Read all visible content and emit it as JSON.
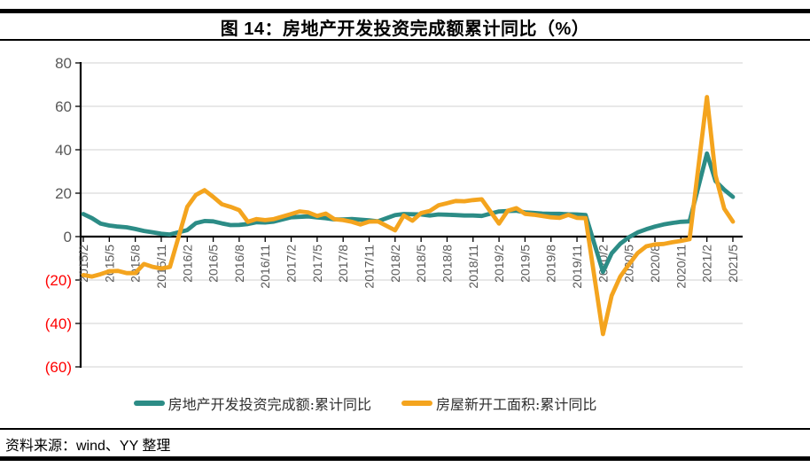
{
  "header": {
    "title": "图 14：房地产开发投资完成额累计同比（%）"
  },
  "footer": {
    "source": "资料来源：wind、YY 整理"
  },
  "colors": {
    "investment": "#2C8C86",
    "new_starts": "#F4A41E",
    "grid": "#D9D9D9",
    "axis": "#000000",
    "tick_label": "#595959",
    "negative_tick_label": "#FF0000"
  },
  "legend": {
    "position": "bottom",
    "items": [
      {
        "label": "房地产开发投资完成额:累计同比",
        "color": "#2C8C86"
      },
      {
        "label": "房屋新开工面积:累计同比",
        "color": "#F4A41E"
      }
    ]
  },
  "chart_data": {
    "type": "line",
    "title": "图 14：房地产开发投资完成额累计同比（%）",
    "xlabel": "",
    "ylabel": "",
    "ylim": [
      -60,
      80
    ],
    "grid": true,
    "y_ticks": [
      {
        "value": 80,
        "label": "80"
      },
      {
        "value": 60,
        "label": "60"
      },
      {
        "value": 40,
        "label": "40"
      },
      {
        "value": 20,
        "label": "20"
      },
      {
        "value": 0,
        "label": "0"
      },
      {
        "value": -20,
        "label": "(20)"
      },
      {
        "value": -40,
        "label": "(40)"
      },
      {
        "value": -60,
        "label": "(60)"
      }
    ],
    "x_ticks": [
      "2015/2",
      "2015/5",
      "2015/8",
      "2015/11",
      "2016/2",
      "2016/5",
      "2016/8",
      "2016/11",
      "2017/2",
      "2017/5",
      "2017/8",
      "2017/11",
      "2018/2",
      "2018/5",
      "2018/8",
      "2018/11",
      "2019/2",
      "2019/5",
      "2019/8",
      "2019/11",
      "2020/2",
      "2020/5",
      "2020/8",
      "2020/11",
      "2021/2",
      "2021/5"
    ],
    "series": [
      {
        "name": "房地产开发投资完成额:累计同比",
        "color": "#2C8C86",
        "points": [
          [
            "2015/2",
            10.4
          ],
          [
            "2015/3",
            8.5
          ],
          [
            "2015/4",
            6.0
          ],
          [
            "2015/5",
            5.1
          ],
          [
            "2015/6",
            4.6
          ],
          [
            "2015/7",
            4.3
          ],
          [
            "2015/8",
            3.5
          ],
          [
            "2015/9",
            2.6
          ],
          [
            "2015/10",
            2.0
          ],
          [
            "2015/11",
            1.3
          ],
          [
            "2015/12",
            1.0
          ],
          [
            "2016/2",
            3.0
          ],
          [
            "2016/3",
            6.2
          ],
          [
            "2016/4",
            7.2
          ],
          [
            "2016/5",
            7.0
          ],
          [
            "2016/6",
            6.1
          ],
          [
            "2016/7",
            5.3
          ],
          [
            "2016/8",
            5.4
          ],
          [
            "2016/9",
            5.8
          ],
          [
            "2016/10",
            6.6
          ],
          [
            "2016/11",
            6.5
          ],
          [
            "2016/12",
            6.9
          ],
          [
            "2017/2",
            8.9
          ],
          [
            "2017/3",
            9.1
          ],
          [
            "2017/4",
            9.3
          ],
          [
            "2017/5",
            8.8
          ],
          [
            "2017/6",
            8.5
          ],
          [
            "2017/7",
            7.9
          ],
          [
            "2017/8",
            7.9
          ],
          [
            "2017/9",
            8.1
          ],
          [
            "2017/10",
            7.8
          ],
          [
            "2017/11",
            7.5
          ],
          [
            "2017/12",
            7.0
          ],
          [
            "2018/2",
            9.9
          ],
          [
            "2018/3",
            10.4
          ],
          [
            "2018/4",
            10.3
          ],
          [
            "2018/5",
            10.2
          ],
          [
            "2018/6",
            9.7
          ],
          [
            "2018/7",
            10.2
          ],
          [
            "2018/8",
            10.1
          ],
          [
            "2018/9",
            9.9
          ],
          [
            "2018/10",
            9.7
          ],
          [
            "2018/11",
            9.7
          ],
          [
            "2018/12",
            9.5
          ],
          [
            "2019/2",
            11.6
          ],
          [
            "2019/3",
            11.8
          ],
          [
            "2019/4",
            11.9
          ],
          [
            "2019/5",
            11.2
          ],
          [
            "2019/6",
            10.9
          ],
          [
            "2019/7",
            10.6
          ],
          [
            "2019/8",
            10.5
          ],
          [
            "2019/9",
            10.5
          ],
          [
            "2019/10",
            10.3
          ],
          [
            "2019/11",
            10.2
          ],
          [
            "2019/12",
            9.9
          ],
          [
            "2020/2",
            -16.3
          ],
          [
            "2020/3",
            -7.7
          ],
          [
            "2020/4",
            -3.3
          ],
          [
            "2020/5",
            -0.3
          ],
          [
            "2020/6",
            1.9
          ],
          [
            "2020/7",
            3.4
          ],
          [
            "2020/8",
            4.6
          ],
          [
            "2020/9",
            5.6
          ],
          [
            "2020/10",
            6.3
          ],
          [
            "2020/11",
            6.8
          ],
          [
            "2020/12",
            7.0
          ],
          [
            "2021/2",
            38.3
          ],
          [
            "2021/3",
            25.6
          ],
          [
            "2021/4",
            21.6
          ],
          [
            "2021/5",
            18.3
          ]
        ]
      },
      {
        "name": "房屋新开工面积:累计同比",
        "color": "#F4A41E",
        "points": [
          [
            "2015/2",
            -17.7
          ],
          [
            "2015/3",
            -18.4
          ],
          [
            "2015/4",
            -17.3
          ],
          [
            "2015/5",
            -16.0
          ],
          [
            "2015/6",
            -15.8
          ],
          [
            "2015/7",
            -16.8
          ],
          [
            "2015/8",
            -16.8
          ],
          [
            "2015/9",
            -12.6
          ],
          [
            "2015/10",
            -13.9
          ],
          [
            "2015/11",
            -14.7
          ],
          [
            "2015/12",
            -14.0
          ],
          [
            "2016/2",
            13.7
          ],
          [
            "2016/3",
            19.2
          ],
          [
            "2016/4",
            21.4
          ],
          [
            "2016/5",
            18.3
          ],
          [
            "2016/6",
            14.9
          ],
          [
            "2016/7",
            13.7
          ],
          [
            "2016/8",
            12.2
          ],
          [
            "2016/9",
            6.8
          ],
          [
            "2016/10",
            8.1
          ],
          [
            "2016/11",
            7.6
          ],
          [
            "2016/12",
            8.1
          ],
          [
            "2017/2",
            10.4
          ],
          [
            "2017/3",
            11.6
          ],
          [
            "2017/4",
            11.1
          ],
          [
            "2017/5",
            9.5
          ],
          [
            "2017/6",
            10.6
          ],
          [
            "2017/7",
            8.0
          ],
          [
            "2017/8",
            7.6
          ],
          [
            "2017/9",
            6.8
          ],
          [
            "2017/10",
            5.6
          ],
          [
            "2017/11",
            6.9
          ],
          [
            "2017/12",
            7.0
          ],
          [
            "2018/2",
            2.9
          ],
          [
            "2018/3",
            9.7
          ],
          [
            "2018/4",
            7.3
          ],
          [
            "2018/5",
            10.8
          ],
          [
            "2018/6",
            11.8
          ],
          [
            "2018/7",
            14.4
          ],
          [
            "2018/8",
            15.4
          ],
          [
            "2018/9",
            16.4
          ],
          [
            "2018/10",
            16.3
          ],
          [
            "2018/11",
            16.8
          ],
          [
            "2018/12",
            17.2
          ],
          [
            "2019/2",
            6.0
          ],
          [
            "2019/3",
            11.9
          ],
          [
            "2019/4",
            13.1
          ],
          [
            "2019/5",
            10.5
          ],
          [
            "2019/6",
            10.1
          ],
          [
            "2019/7",
            9.5
          ],
          [
            "2019/8",
            8.9
          ],
          [
            "2019/9",
            8.6
          ],
          [
            "2019/10",
            10.0
          ],
          [
            "2019/11",
            8.6
          ],
          [
            "2019/12",
            8.5
          ],
          [
            "2020/2",
            -44.9
          ],
          [
            "2020/3",
            -27.2
          ],
          [
            "2020/4",
            -18.4
          ],
          [
            "2020/5",
            -12.8
          ],
          [
            "2020/6",
            -7.6
          ],
          [
            "2020/7",
            -4.5
          ],
          [
            "2020/8",
            -3.6
          ],
          [
            "2020/9",
            -3.4
          ],
          [
            "2020/10",
            -2.6
          ],
          [
            "2020/11",
            -2.0
          ],
          [
            "2020/12",
            -1.2
          ],
          [
            "2021/2",
            64.3
          ],
          [
            "2021/3",
            28.2
          ],
          [
            "2021/4",
            12.9
          ],
          [
            "2021/5",
            6.9
          ]
        ]
      }
    ]
  }
}
